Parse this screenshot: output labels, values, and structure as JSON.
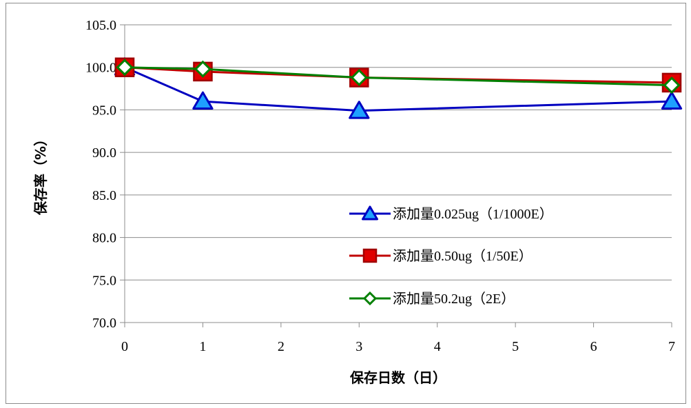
{
  "chart_data": {
    "type": "line",
    "xlabel": "保存日数（日）",
    "ylabel": "保存率（%）",
    "xlim": [
      0,
      7
    ],
    "ylim": [
      70.0,
      105.0
    ],
    "x_ticks": [
      "0",
      "1",
      "2",
      "3",
      "4",
      "5",
      "6",
      "7"
    ],
    "y_ticks": [
      "70.0",
      "75.0",
      "80.0",
      "85.0",
      "90.0",
      "95.0",
      "100.0",
      "105.0"
    ],
    "grid": true,
    "legend_position": "lower-right",
    "series": [
      {
        "name": "添加量0.025ug（1/1000E）",
        "x": [
          0,
          1,
          3,
          7
        ],
        "y": [
          100.0,
          96.0,
          94.9,
          96.0
        ],
        "line_color": "#0000c0",
        "marker": "triangle",
        "marker_fill": "#1ea0ff",
        "marker_stroke": "#0000c0"
      },
      {
        "name": "添加量0.50ug（1/50E）",
        "x": [
          0,
          1,
          3,
          7
        ],
        "y": [
          100.0,
          99.5,
          98.8,
          98.2
        ],
        "line_color": "#c00000",
        "marker": "square",
        "marker_fill": "#e00000",
        "marker_stroke": "#a00000"
      },
      {
        "name": "添加量50.2ug（2E）",
        "x": [
          0,
          1,
          3,
          7
        ],
        "y": [
          100.0,
          99.8,
          98.8,
          97.9
        ],
        "line_color": "#008000",
        "marker": "diamond",
        "marker_fill": "#ffffff",
        "marker_stroke": "#008000"
      }
    ]
  }
}
